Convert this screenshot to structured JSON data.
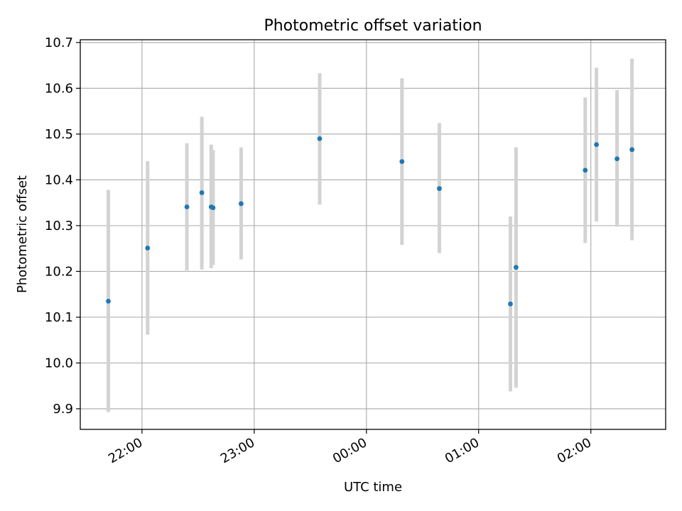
{
  "chart_data": {
    "type": "scatter",
    "title": "Photometric offset variation",
    "xlabel": "UTC time",
    "ylabel": "Photometric offset",
    "xlim": [
      "21:27",
      "02:40"
    ],
    "ylim": [
      9.855,
      10.706
    ],
    "x_ticks": [
      "22:00",
      "23:00",
      "00:00",
      "01:00",
      "02:00"
    ],
    "y_ticks": [
      "9.9",
      "10.0",
      "10.1",
      "10.2",
      "10.3",
      "10.4",
      "10.5",
      "10.6",
      "10.7"
    ],
    "grid": true,
    "error_bar_color": "#d3d3d3",
    "marker_color": "#1f77b4",
    "points": [
      {
        "time": "21:42",
        "y": 10.135,
        "err_low": 9.893,
        "err_high": 10.378
      },
      {
        "time": "22:03",
        "y": 10.251,
        "err_low": 10.062,
        "err_high": 10.441
      },
      {
        "time": "22:24",
        "y": 10.341,
        "err_low": 10.202,
        "err_high": 10.48
      },
      {
        "time": "22:32",
        "y": 10.372,
        "err_low": 10.204,
        "err_high": 10.538
      },
      {
        "time": "22:37",
        "y": 10.341,
        "err_low": 10.207,
        "err_high": 10.477
      },
      {
        "time": "22:38",
        "y": 10.339,
        "err_low": 10.214,
        "err_high": 10.465
      },
      {
        "time": "22:53",
        "y": 10.348,
        "err_low": 10.226,
        "err_high": 10.471
      },
      {
        "time": "23:35",
        "y": 10.49,
        "err_low": 10.346,
        "err_high": 10.633
      },
      {
        "time": "00:19",
        "y": 10.44,
        "err_low": 10.258,
        "err_high": 10.622
      },
      {
        "time": "00:39",
        "y": 10.381,
        "err_low": 10.24,
        "err_high": 10.524
      },
      {
        "time": "01:17",
        "y": 10.129,
        "err_low": 9.938,
        "err_high": 10.32
      },
      {
        "time": "01:20",
        "y": 10.209,
        "err_low": 9.946,
        "err_high": 10.471
      },
      {
        "time": "01:57",
        "y": 10.421,
        "err_low": 10.262,
        "err_high": 10.58
      },
      {
        "time": "02:03",
        "y": 10.477,
        "err_low": 10.309,
        "err_high": 10.645
      },
      {
        "time": "02:14",
        "y": 10.446,
        "err_low": 10.298,
        "err_high": 10.596
      },
      {
        "time": "02:22",
        "y": 10.466,
        "err_low": 10.268,
        "err_high": 10.665
      }
    ]
  }
}
